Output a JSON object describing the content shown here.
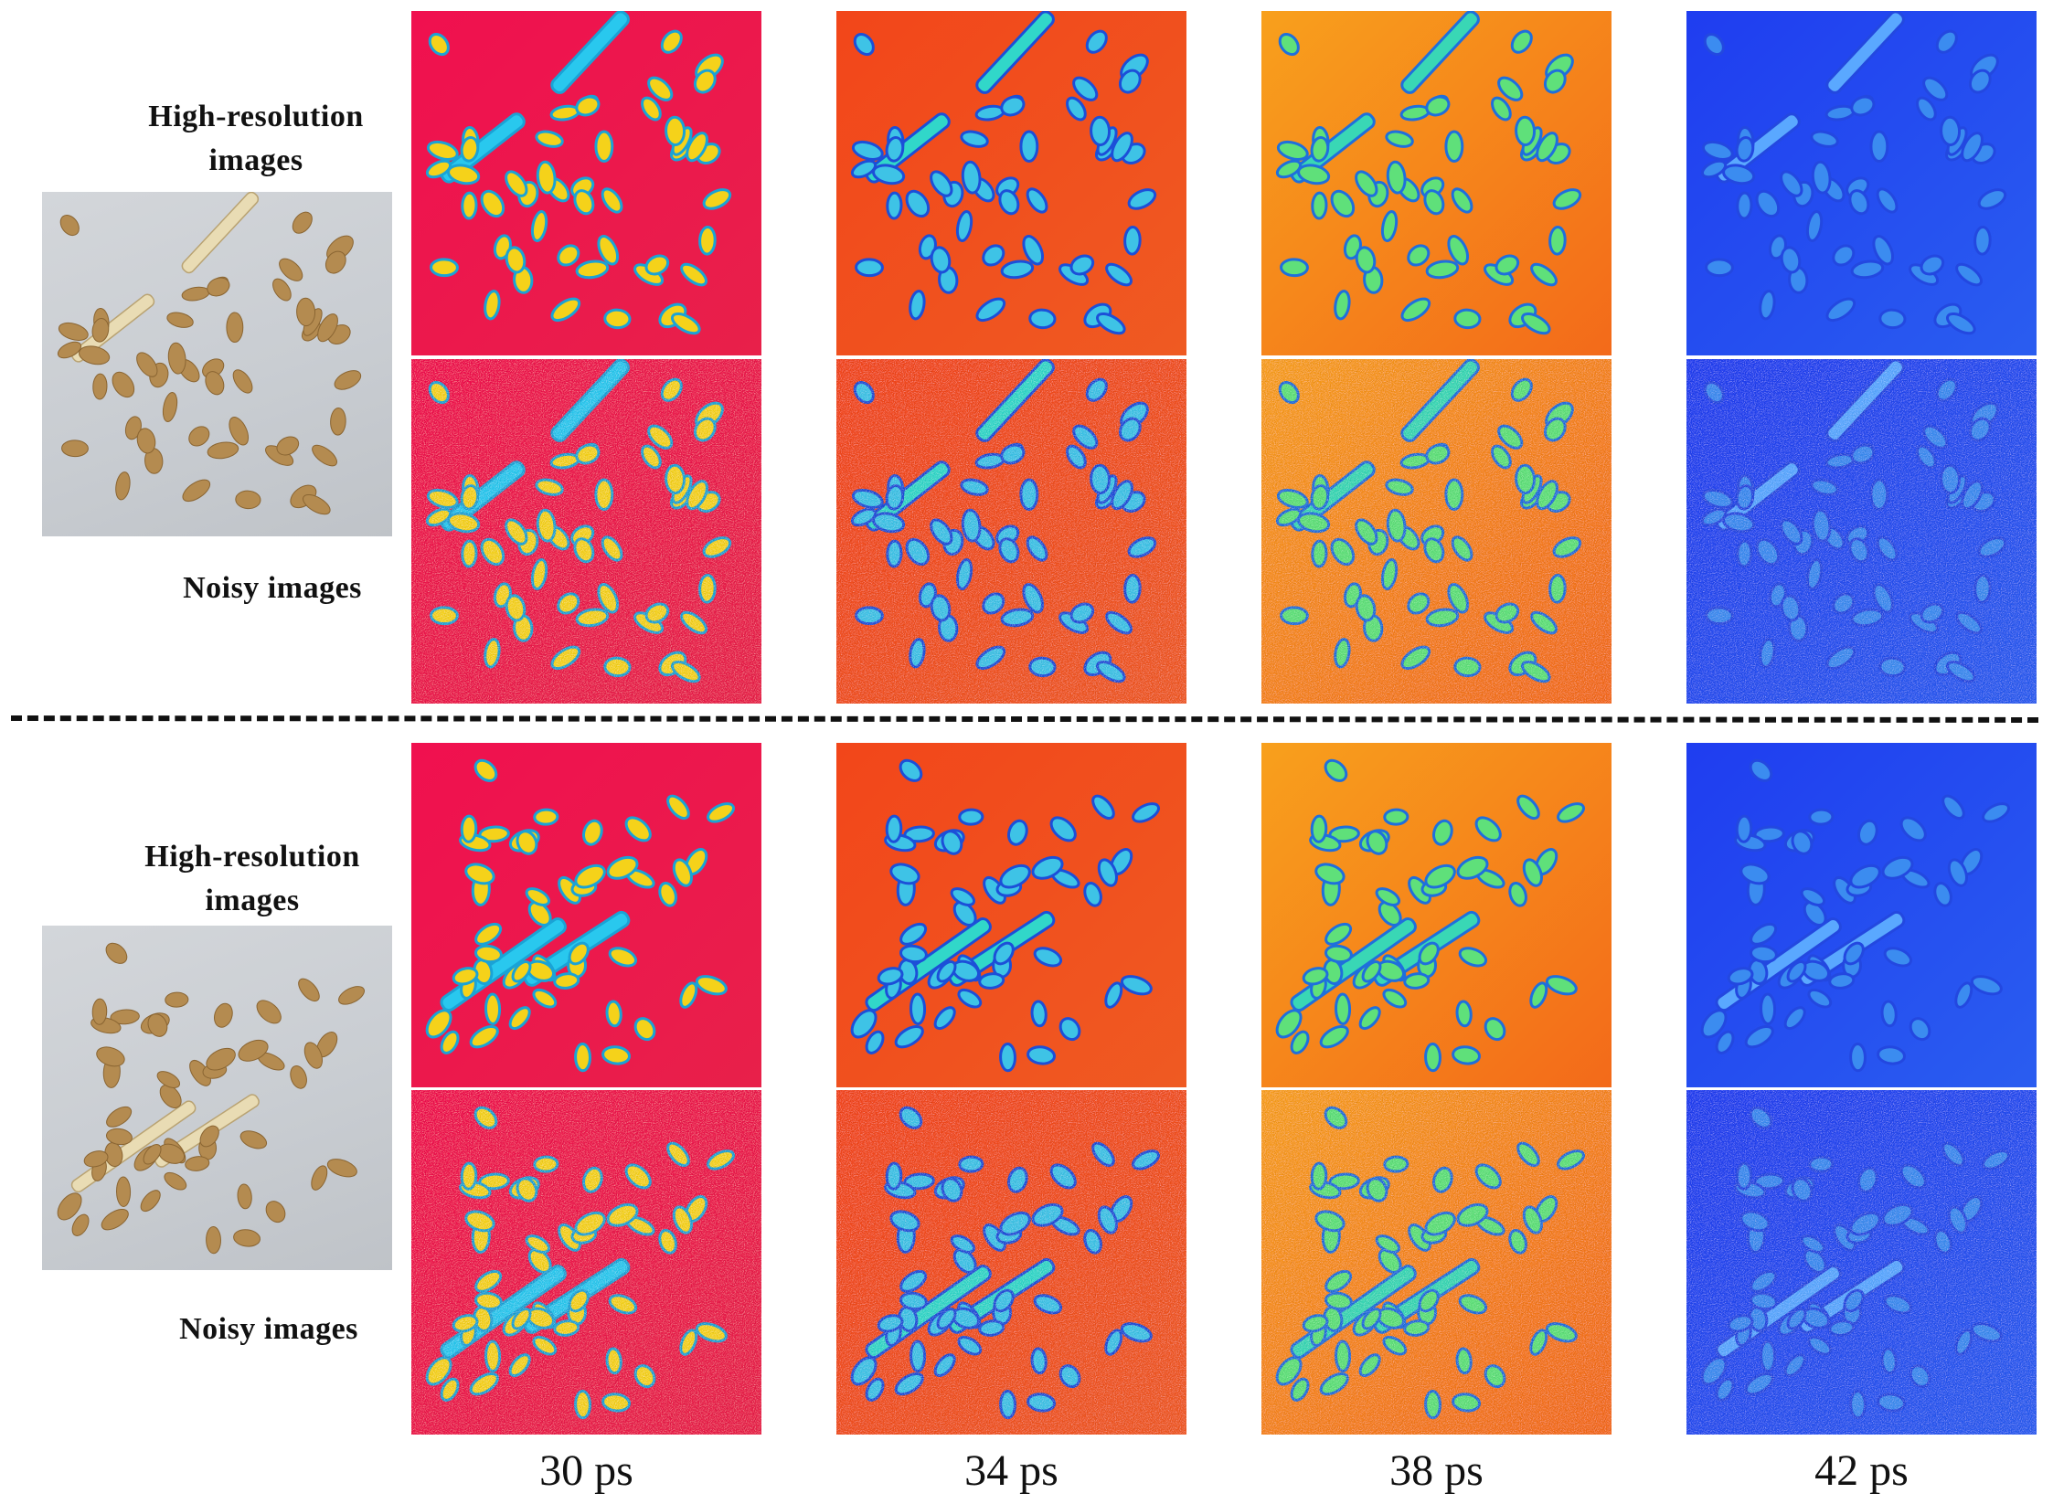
{
  "groups": [
    {
      "hr_label": "High-resolution images",
      "noisy_label": "Noisy images"
    },
    {
      "hr_label": "High-resolution images",
      "noisy_label": "Noisy images"
    }
  ],
  "time_labels": [
    "30 ps",
    "34 ps",
    "38 ps",
    "42 ps"
  ],
  "colormaps": {
    "30 ps": {
      "background": [
        "#f0104f",
        "#e8204a"
      ],
      "grain_fill": "#f5d21a",
      "grain_edge": "#1aa3d6",
      "grain_core": "#29c8ee"
    },
    "34 ps": {
      "background": [
        "#f2461a",
        "#ef5a22"
      ],
      "grain_fill": "#3ec3e6",
      "grain_edge": "#1c4fd8",
      "grain_core": "#31d7c9"
    },
    "38 ps": {
      "background": [
        "#f8a01c",
        "#f36a1a"
      ],
      "grain_fill": "#5fe07a",
      "grain_edge": "#1f6fdc",
      "grain_core": "#39d7b5"
    },
    "42 ps": {
      "background": [
        "#1f3df0",
        "#2a5df0"
      ],
      "grain_fill": "#3b8cf0",
      "grain_edge": "#2348e0",
      "grain_core": "#5aa8ff"
    }
  }
}
